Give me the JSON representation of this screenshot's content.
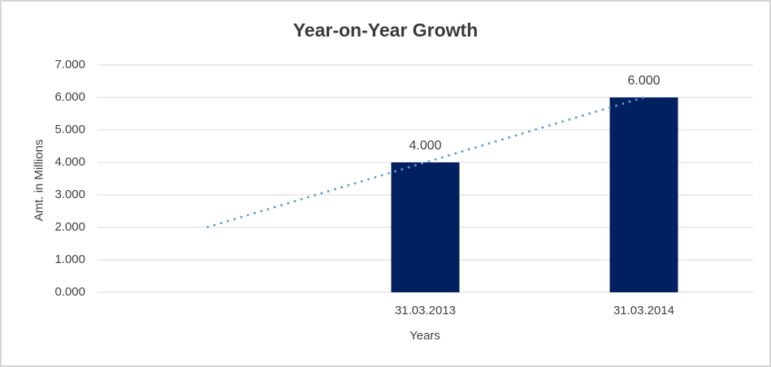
{
  "window": {
    "background_color": "#ffffff",
    "border_color": "#d6d6d6"
  },
  "chart_data": {
    "type": "bar",
    "title": "Year-on-Year Growth",
    "xlabel": "Years",
    "ylabel": "Amt. in Millions",
    "categories": [
      "31.03.2013",
      "31.03.2014"
    ],
    "values": [
      4.0,
      6.0
    ],
    "data_labels": [
      "4.000",
      "6.000"
    ],
    "ylim": [
      0,
      7
    ],
    "ytick_step": 1,
    "ytick_labels": [
      "0.000",
      "1.000",
      "2.000",
      "3.000",
      "4.000",
      "5.000",
      "6.000",
      "7.000"
    ],
    "grid": true,
    "legend": "none",
    "bar_color": "#002060",
    "gridline_color": "#d9d9d9",
    "num_category_slots": 3,
    "bar_slots": [
      1,
      2
    ],
    "trendline": {
      "style": "dotted",
      "color": "#5b9bd5",
      "points": [
        {
          "x_slot_center": 0.5,
          "value": 2.0
        },
        {
          "x_slot_center": 2.5,
          "value": 6.0
        }
      ]
    }
  }
}
